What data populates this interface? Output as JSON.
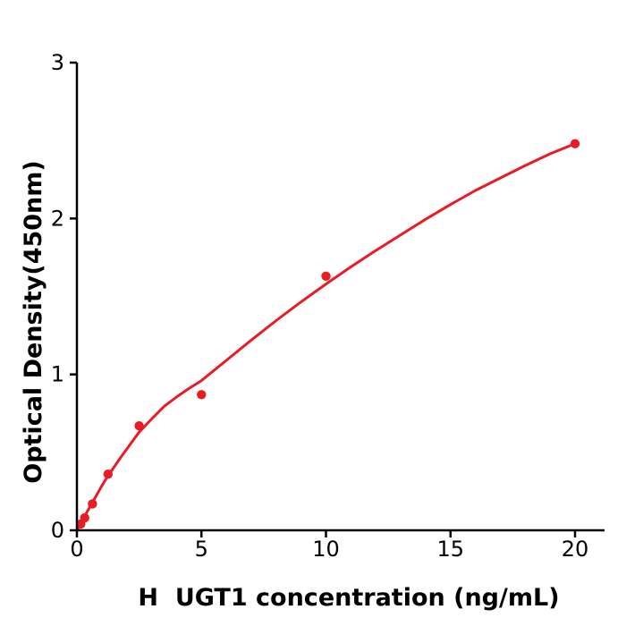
{
  "figure": {
    "background": "#ffffff",
    "accent_color": "#e81c24",
    "axis_color": "#000000"
  },
  "chart_data": {
    "type": "scatter",
    "title": "",
    "xlabel": "H  UGT1 concentration (ng/mL)",
    "ylabel": "Optical Density(450nm)",
    "xlim": [
      0,
      21.2
    ],
    "ylim": [
      0,
      3
    ],
    "x_ticks": [
      0,
      5,
      10,
      15,
      20
    ],
    "y_ticks": [
      0,
      1,
      2,
      3
    ],
    "grid": false,
    "legend": null,
    "series": [
      {
        "name": "fitted-curve",
        "type": "line",
        "color": "#e81c24",
        "stroke_width": 3,
        "points": [
          [
            0,
            0
          ],
          [
            0.16,
            0.046
          ],
          [
            0.31,
            0.09
          ],
          [
            0.63,
            0.18
          ],
          [
            1.0,
            0.285
          ],
          [
            1.25,
            0.35
          ],
          [
            1.75,
            0.465
          ],
          [
            2.2,
            0.565
          ],
          [
            2.5,
            0.63
          ],
          [
            3,
            0.715
          ],
          [
            3.5,
            0.795
          ],
          [
            4,
            0.855
          ],
          [
            4.5,
            0.91
          ],
          [
            5,
            0.96
          ],
          [
            6,
            1.09
          ],
          [
            7,
            1.22
          ],
          [
            8,
            1.345
          ],
          [
            9,
            1.465
          ],
          [
            10,
            1.58
          ],
          [
            11,
            1.69
          ],
          [
            12,
            1.795
          ],
          [
            13,
            1.895
          ],
          [
            14,
            1.995
          ],
          [
            15,
            2.09
          ],
          [
            16,
            2.18
          ],
          [
            17,
            2.26
          ],
          [
            18,
            2.34
          ],
          [
            19,
            2.415
          ],
          [
            20,
            2.48
          ]
        ]
      },
      {
        "name": "standard-points",
        "type": "scatter",
        "color": "#e81c24",
        "marker_radius": 5.2,
        "points": [
          [
            0.156,
            0.04
          ],
          [
            0.3125,
            0.08
          ],
          [
            0.625,
            0.17
          ],
          [
            1.25,
            0.36
          ],
          [
            2.5,
            0.67
          ],
          [
            5,
            0.87
          ],
          [
            10,
            1.63
          ],
          [
            20,
            2.48
          ]
        ]
      }
    ]
  }
}
